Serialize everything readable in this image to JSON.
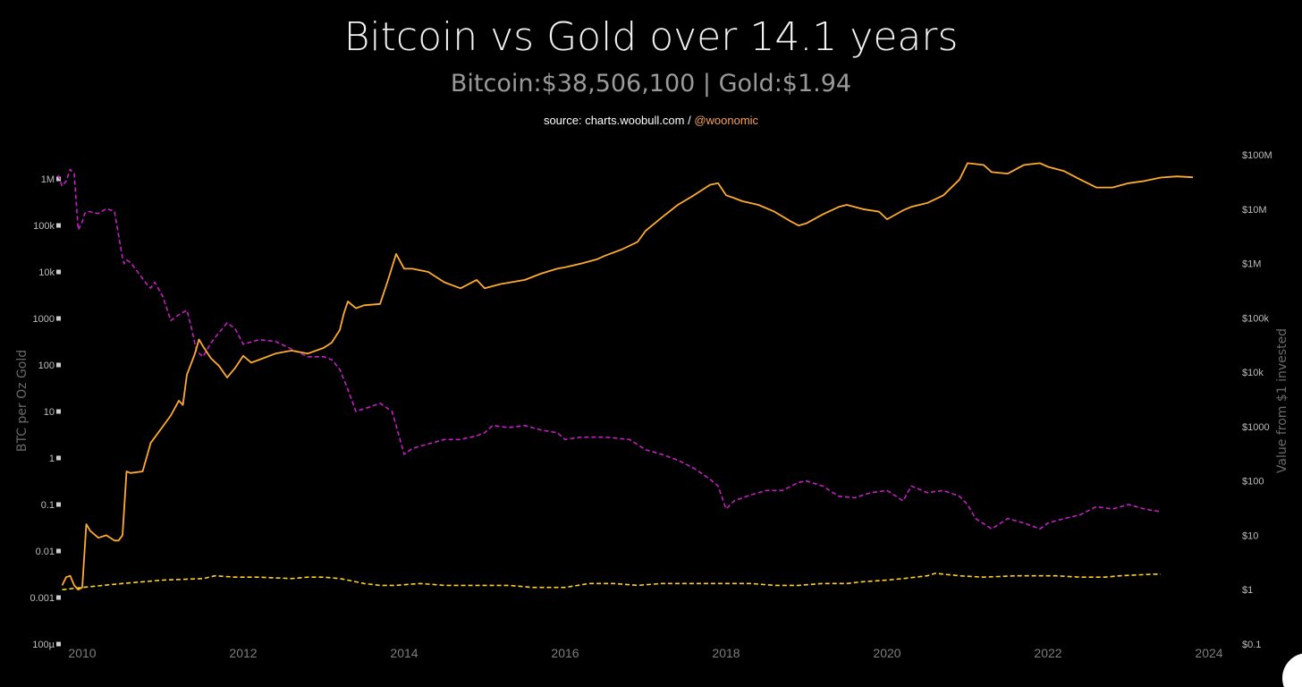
{
  "header": {
    "title": "Bitcoin vs Gold over 14.1 years",
    "subtitle": "Bitcoin:$38,506,100 | Gold:$1.94",
    "source_prefix": "source: charts.woobull.com / ",
    "source_handle": "@woonomic"
  },
  "chart_data": {
    "type": "line",
    "title": "Bitcoin vs Gold over 14.1 years",
    "subtitle": "Bitcoin:$38,506,100 | Gold:$1.94",
    "xlabel": "",
    "ylabel_left": "BTC per Oz Gold",
    "ylabel_right": "Value from $1 invested",
    "x_ticks": [
      "2010",
      "2012",
      "2014",
      "2016",
      "2018",
      "2020",
      "2022",
      "2024"
    ],
    "x_range": [
      2009.8,
      2024.2
    ],
    "left_axis": {
      "scale": "log",
      "ticks": [
        "100µ",
        "0.001",
        "0.01",
        "0.1",
        "1",
        "10",
        "100",
        "1000",
        "10k",
        "100k",
        "1M"
      ],
      "ylim": [
        0.0001,
        2000000
      ]
    },
    "right_axis": {
      "scale": "log",
      "ticks": [
        "$0.1",
        "$1",
        "$10",
        "$100",
        "$1000",
        "$10k",
        "$100k",
        "$1M",
        "$10M",
        "$100M"
      ],
      "ylim": [
        0.1,
        100000000
      ]
    },
    "series": [
      {
        "axis": "left",
        "color": "#c41fc4",
        "dash": true,
        "x": [
          2009.7,
          2009.75,
          2009.8,
          2009.85,
          2009.9,
          2009.95,
          2010.0,
          2010.03,
          2010.07,
          2010.2,
          2010.3,
          2010.4,
          2010.5,
          2010.52,
          2010.55,
          2010.6,
          2010.8,
          2010.85,
          2010.9,
          2011.0,
          2011.1,
          2011.2,
          2011.3,
          2011.35,
          2011.42,
          2011.5,
          2011.6,
          2011.7,
          2011.8,
          2011.9,
          2012.0,
          2012.2,
          2012.4,
          2012.6,
          2012.8,
          2013.0,
          2013.1,
          2013.2,
          2013.3,
          2013.4,
          2013.6,
          2013.7,
          2013.85,
          2013.9,
          2014.0,
          2014.1,
          2014.2,
          2014.3,
          2014.5,
          2014.7,
          2014.9,
          2015.0,
          2015.1,
          2015.3,
          2015.5,
          2015.7,
          2015.9,
          2016.0,
          2016.2,
          2016.5,
          2016.8,
          2017.0,
          2017.2,
          2017.4,
          2017.6,
          2017.8,
          2017.9,
          2018.0,
          2018.1,
          2018.3,
          2018.5,
          2018.7,
          2018.9,
          2019.0,
          2019.2,
          2019.4,
          2019.6,
          2019.8,
          2020.0,
          2020.2,
          2020.3,
          2020.5,
          2020.7,
          2020.9,
          2021.0,
          2021.1,
          2021.3,
          2021.5,
          2021.7,
          2021.9,
          2022.0,
          2022.2,
          2022.4,
          2022.6,
          2022.8,
          2023.0,
          2023.2,
          2023.4
        ],
        "y": [
          1200000,
          700000,
          900000,
          1600000,
          1300000,
          80000,
          120000,
          180000,
          200000,
          180000,
          230000,
          200000,
          20000,
          15000,
          18000,
          16000,
          5500,
          4500,
          6000,
          3000,
          900,
          1200,
          1500,
          700,
          200,
          150,
          300,
          500,
          800,
          600,
          280,
          350,
          320,
          220,
          150,
          150,
          130,
          80,
          30,
          10,
          13,
          15,
          10,
          5,
          1.2,
          1.6,
          1.8,
          2.0,
          2.5,
          2.5,
          3.0,
          3.5,
          5.0,
          4.5,
          5.0,
          4.0,
          3.5,
          2.5,
          2.8,
          2.8,
          2.5,
          1.5,
          1.2,
          0.9,
          0.6,
          0.35,
          0.25,
          0.08,
          0.12,
          0.16,
          0.2,
          0.2,
          0.3,
          0.32,
          0.25,
          0.15,
          0.14,
          0.18,
          0.2,
          0.12,
          0.25,
          0.18,
          0.2,
          0.15,
          0.1,
          0.05,
          0.03,
          0.05,
          0.04,
          0.03,
          0.04,
          0.05,
          0.06,
          0.09,
          0.08,
          0.1,
          0.08,
          0.07
        ]
      },
      {
        "axis": "right",
        "color": "#ffab2e",
        "dash": false,
        "x": [
          2009.75,
          2009.8,
          2009.85,
          2009.9,
          2009.95,
          2010.0,
          2010.05,
          2010.1,
          2010.2,
          2010.3,
          2010.4,
          2010.45,
          2010.5,
          2010.55,
          2010.6,
          2010.75,
          2010.85,
          2011.0,
          2011.1,
          2011.2,
          2011.25,
          2011.3,
          2011.4,
          2011.45,
          2011.5,
          2011.6,
          2011.7,
          2011.8,
          2011.9,
          2012.0,
          2012.1,
          2012.2,
          2012.4,
          2012.6,
          2012.8,
          2013.0,
          2013.1,
          2013.2,
          2013.25,
          2013.3,
          2013.4,
          2013.5,
          2013.7,
          2013.8,
          2013.9,
          2014.0,
          2014.1,
          2014.3,
          2014.5,
          2014.7,
          2014.9,
          2015.0,
          2015.2,
          2015.5,
          2015.7,
          2015.9,
          2016.0,
          2016.2,
          2016.4,
          2016.5,
          2016.7,
          2016.9,
          2017.0,
          2017.2,
          2017.4,
          2017.6,
          2017.8,
          2017.9,
          2018.0,
          2018.1,
          2018.2,
          2018.4,
          2018.6,
          2018.8,
          2018.9,
          2019.0,
          2019.2,
          2019.4,
          2019.5,
          2019.7,
          2019.9,
          2020.0,
          2020.2,
          2020.3,
          2020.5,
          2020.7,
          2020.9,
          2021.0,
          2021.2,
          2021.3,
          2021.5,
          2021.7,
          2021.9,
          2022.0,
          2022.2,
          2022.4,
          2022.6,
          2022.8,
          2023.0,
          2023.2,
          2023.4,
          2023.6,
          2023.8
        ],
        "y": [
          1.2,
          1.7,
          1.8,
          1.2,
          1.0,
          1.1,
          16,
          12,
          9,
          10,
          8,
          8,
          10,
          150,
          140,
          150,
          500,
          1000,
          1600,
          3000,
          2500,
          9000,
          22000,
          40000,
          30000,
          18000,
          13000,
          8000,
          12000,
          20000,
          15000,
          17000,
          22000,
          25000,
          22000,
          28000,
          35000,
          60000,
          120000,
          200000,
          150000,
          170000,
          180000,
          500000,
          1500000,
          800000,
          800000,
          700000,
          450000,
          350000,
          500000,
          350000,
          420000,
          500000,
          650000,
          800000,
          850000,
          1000000,
          1200000,
          1400000,
          1800000,
          2500000,
          4000000,
          7000000,
          12000000,
          18000000,
          28000000,
          30000000,
          18000000,
          16000000,
          14000000,
          12000000,
          9000000,
          6000000,
          5000000,
          5500000,
          8000000,
          11000000,
          12000000,
          10000000,
          9000000,
          6500000,
          9500000,
          11000000,
          13000000,
          18000000,
          35000000,
          70000000,
          65000000,
          48000000,
          45000000,
          65000000,
          70000000,
          60000000,
          50000000,
          35000000,
          25000000,
          25000000,
          30000000,
          33000000,
          38000000,
          40000000,
          38500000
        ]
      },
      {
        "axis": "right",
        "color": "#ffd21f",
        "dash": true,
        "x": [
          2009.75,
          2010.0,
          2010.5,
          2011.0,
          2011.5,
          2011.65,
          2011.9,
          2012.2,
          2012.6,
          2012.8,
          2013.0,
          2013.2,
          2013.3,
          2013.5,
          2013.7,
          2013.9,
          2014.2,
          2014.5,
          2014.8,
          2015.0,
          2015.3,
          2015.6,
          2015.9,
          2016.0,
          2016.3,
          2016.6,
          2016.9,
          2017.2,
          2017.6,
          2018.0,
          2018.3,
          2018.6,
          2018.9,
          2019.2,
          2019.5,
          2019.7,
          2020.0,
          2020.2,
          2020.5,
          2020.6,
          2020.9,
          2021.2,
          2021.6,
          2021.9,
          2022.1,
          2022.4,
          2022.7,
          2022.9,
          2023.2,
          2023.4
        ],
        "y": [
          1.0,
          1.1,
          1.3,
          1.5,
          1.6,
          1.8,
          1.7,
          1.7,
          1.6,
          1.7,
          1.7,
          1.6,
          1.5,
          1.3,
          1.2,
          1.2,
          1.3,
          1.2,
          1.2,
          1.2,
          1.2,
          1.1,
          1.1,
          1.1,
          1.3,
          1.3,
          1.2,
          1.3,
          1.3,
          1.3,
          1.3,
          1.2,
          1.2,
          1.3,
          1.3,
          1.4,
          1.5,
          1.6,
          1.8,
          2.0,
          1.8,
          1.7,
          1.8,
          1.8,
          1.8,
          1.7,
          1.7,
          1.8,
          1.9,
          1.94
        ]
      }
    ]
  }
}
